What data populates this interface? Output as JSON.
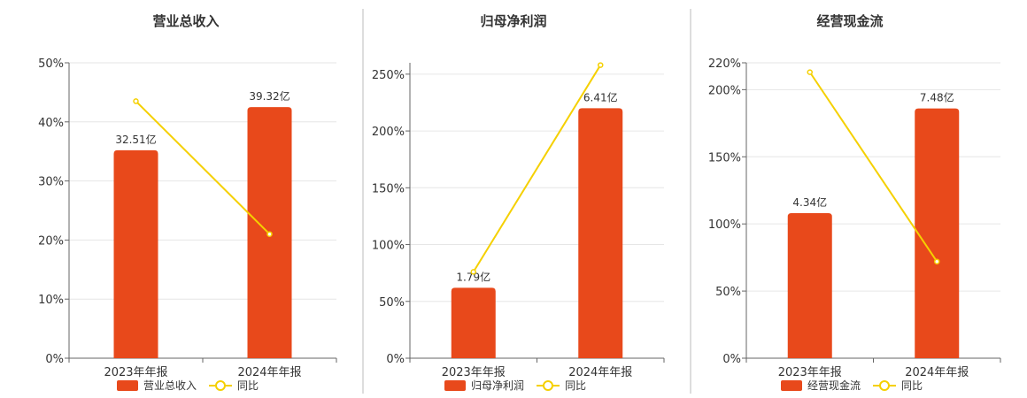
{
  "colors": {
    "bar": "#E8491B",
    "line": "#F5D000",
    "grid": "#E6E6E6",
    "axis": "#666666",
    "divider": "#BBBBBB"
  },
  "chart_data": [
    {
      "type": "bar",
      "title": "营业总收入",
      "categories": [
        "2023年年报",
        "2024年年报"
      ],
      "series": [
        {
          "name": "营业总收入",
          "type": "bar",
          "values": [
            32.51,
            39.32
          ],
          "labels": [
            "32.51亿",
            "39.32亿"
          ]
        },
        {
          "name": "同比",
          "type": "line",
          "values": [
            43.5,
            21.0
          ]
        }
      ],
      "ylim": [
        0,
        50
      ],
      "yticks": [
        "0%",
        "10%",
        "20%",
        "30%",
        "40%",
        "50%"
      ],
      "yticks_values": [
        0,
        10,
        20,
        30,
        40,
        50
      ],
      "bar_heights_pct": [
        35.2,
        42.5
      ],
      "grid": true,
      "legend_position": "bottom"
    },
    {
      "type": "bar",
      "title": "归母净利润",
      "categories": [
        "2023年年报",
        "2024年年报"
      ],
      "series": [
        {
          "name": "归母净利润",
          "type": "bar",
          "values": [
            1.79,
            6.41
          ],
          "labels": [
            "1.79亿",
            "6.41亿"
          ]
        },
        {
          "name": "同比",
          "type": "line",
          "values": [
            76,
            258
          ]
        }
      ],
      "ylim": [
        0,
        260
      ],
      "yticks": [
        "0%",
        "50%",
        "100%",
        "150%",
        "200%",
        "250%"
      ],
      "yticks_values": [
        0,
        50,
        100,
        150,
        200,
        250
      ],
      "bar_heights_pct": [
        62,
        220
      ],
      "grid": true,
      "legend_position": "bottom"
    },
    {
      "type": "bar",
      "title": "经营现金流",
      "categories": [
        "2023年年报",
        "2024年年报"
      ],
      "series": [
        {
          "name": "经营现金流",
          "type": "bar",
          "values": [
            4.34,
            7.48
          ],
          "labels": [
            "4.34亿",
            "7.48亿"
          ]
        },
        {
          "name": "同比",
          "type": "line",
          "values": [
            213,
            72
          ]
        }
      ],
      "ylim": [
        0,
        220
      ],
      "yticks": [
        "0%",
        "50%",
        "100%",
        "150%",
        "200%",
        "220%"
      ],
      "yticks_values": [
        0,
        50,
        100,
        150,
        200,
        220
      ],
      "bar_heights_pct": [
        108,
        186
      ],
      "grid": true,
      "legend_position": "bottom"
    }
  ]
}
